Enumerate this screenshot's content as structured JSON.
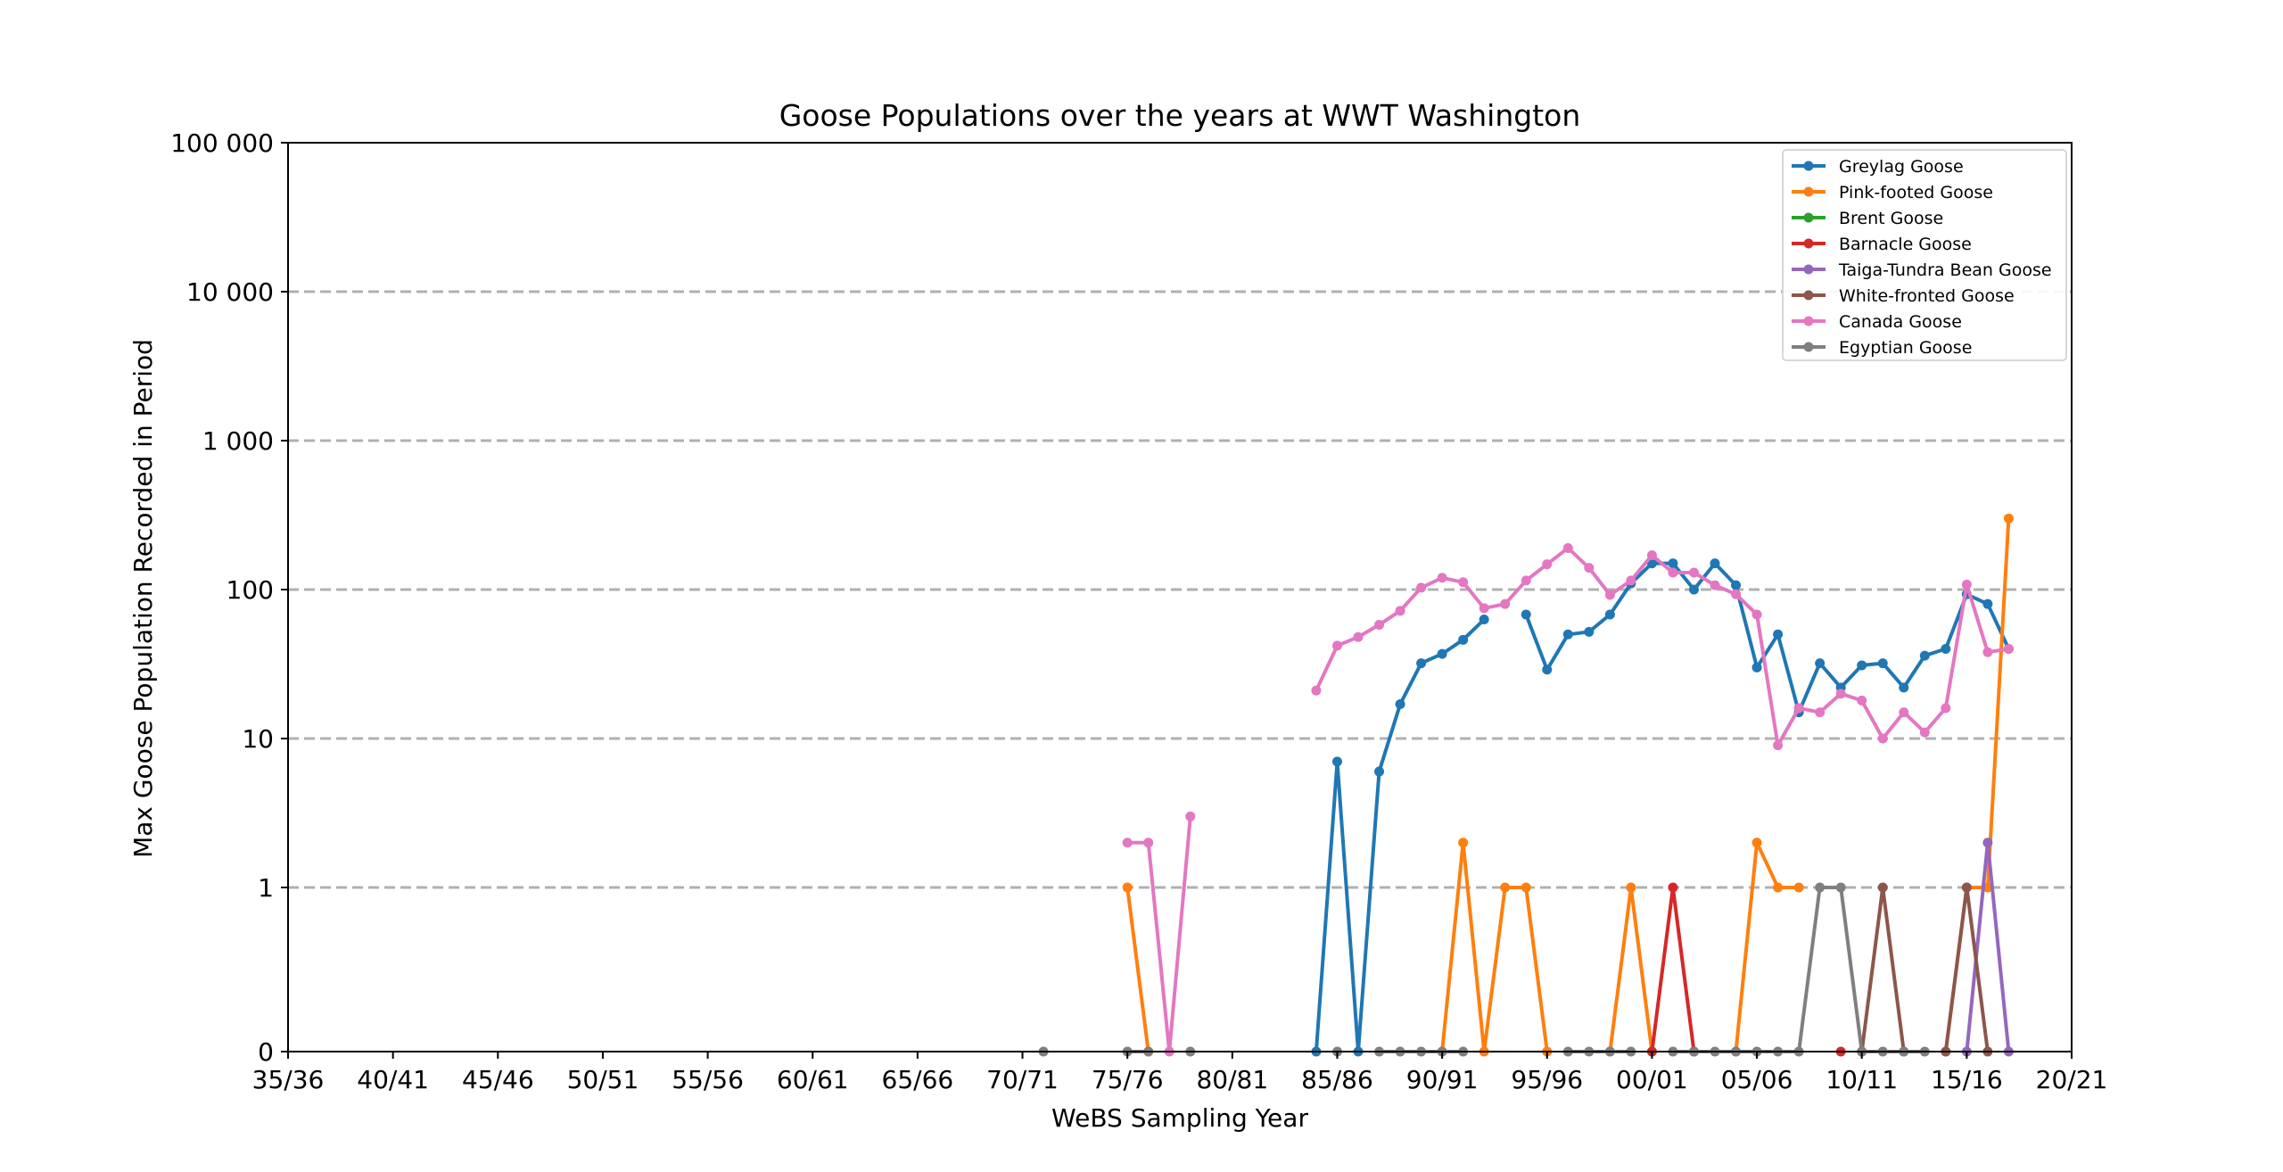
{
  "chart_data": {
    "type": "line",
    "title": "Goose Populations over the years at WWT Washington",
    "xlabel": "WeBS Sampling Year",
    "ylabel": "Max Goose Population Recorded in Period",
    "x_ticks": [
      "35/36",
      "40/41",
      "45/46",
      "50/51",
      "55/56",
      "60/61",
      "65/66",
      "70/71",
      "75/76",
      "80/81",
      "85/86",
      "90/91",
      "95/96",
      "00/01",
      "05/06",
      "10/11",
      "15/16",
      "20/21"
    ],
    "y_ticks": [
      "0",
      "1",
      "10",
      "100",
      "1 000",
      "10 000",
      "100 000"
    ],
    "y_scale": "symlog",
    "xlim": [
      "35/36",
      "20/21"
    ],
    "ylim": [
      0,
      100000
    ],
    "grid": "y-dashed",
    "legend_position": "top-right",
    "series": [
      {
        "name": "Greylag Goose",
        "color": "#1f77b4",
        "points": [
          [
            "84/85",
            0
          ],
          [
            "85/86",
            7
          ],
          [
            "86/87",
            0
          ],
          [
            "87/88",
            6
          ],
          [
            "88/89",
            17
          ],
          [
            "89/90",
            32
          ],
          [
            "90/91",
            37
          ],
          [
            "91/92",
            46
          ],
          [
            "92/93",
            63
          ],
          [
            "94/95",
            68
          ],
          [
            "95/96",
            29
          ],
          [
            "96/97",
            50
          ],
          [
            "97/98",
            52
          ],
          [
            "98/99",
            68
          ],
          [
            "99/00",
            110
          ],
          [
            "00/01",
            150
          ],
          [
            "01/02",
            150
          ],
          [
            "02/03",
            100
          ],
          [
            "03/04",
            150
          ],
          [
            "04/05",
            107
          ],
          [
            "05/06",
            30
          ],
          [
            "06/07",
            50
          ],
          [
            "07/08",
            15
          ],
          [
            "08/09",
            32
          ],
          [
            "09/10",
            22
          ],
          [
            "10/11",
            31
          ],
          [
            "11/12",
            32
          ],
          [
            "12/13",
            22
          ],
          [
            "13/14",
            36
          ],
          [
            "14/15",
            40
          ],
          [
            "15/16",
            93
          ],
          [
            "16/17",
            80
          ],
          [
            "17/18",
            40
          ]
        ]
      },
      {
        "name": "Pink-footed Goose",
        "color": "#ff7f0e",
        "points": [
          [
            "75/76",
            1
          ],
          [
            "76/77",
            0
          ],
          [
            "90/91",
            0
          ],
          [
            "91/92",
            2
          ],
          [
            "92/93",
            0
          ],
          [
            "93/94",
            1
          ],
          [
            "94/95",
            1
          ],
          [
            "95/96",
            0
          ],
          [
            "98/99",
            0
          ],
          [
            "99/00",
            1
          ],
          [
            "00/01",
            0
          ],
          [
            "04/05",
            0
          ],
          [
            "05/06",
            2
          ],
          [
            "06/07",
            1
          ],
          [
            "07/08",
            1
          ],
          [
            "14/15",
            0
          ],
          [
            "15/16",
            1
          ],
          [
            "16/17",
            1
          ],
          [
            "17/18",
            300
          ]
        ]
      },
      {
        "name": "Brent Goose",
        "color": "#2ca02c",
        "points": []
      },
      {
        "name": "Barnacle Goose",
        "color": "#d62728",
        "points": [
          [
            "00/01",
            0
          ],
          [
            "01/02",
            1
          ],
          [
            "02/03",
            0
          ],
          [
            "09/10",
            0
          ]
        ]
      },
      {
        "name": "Taiga-Tundra Bean Goose",
        "color": "#9467bd",
        "points": [
          [
            "15/16",
            0
          ],
          [
            "16/17",
            2
          ],
          [
            "17/18",
            0
          ]
        ]
      },
      {
        "name": "White-fronted Goose",
        "color": "#8c564b",
        "points": [
          [
            "10/11",
            0
          ],
          [
            "11/12",
            1
          ],
          [
            "12/13",
            0
          ],
          [
            "14/15",
            0
          ],
          [
            "15/16",
            1
          ],
          [
            "16/17",
            0
          ]
        ]
      },
      {
        "name": "Canada Goose",
        "color": "#e377c2",
        "points": [
          [
            "75/76",
            2
          ],
          [
            "76/77",
            2
          ],
          [
            "77/78",
            0
          ],
          [
            "78/79",
            3
          ],
          [
            "84/85",
            21
          ],
          [
            "85/86",
            42
          ],
          [
            "86/87",
            48
          ],
          [
            "87/88",
            58
          ],
          [
            "88/89",
            72
          ],
          [
            "89/90",
            103
          ],
          [
            "90/91",
            120
          ],
          [
            "91/92",
            112
          ],
          [
            "92/93",
            75
          ],
          [
            "93/94",
            80
          ],
          [
            "94/95",
            115
          ],
          [
            "95/96",
            148
          ],
          [
            "96/97",
            190
          ],
          [
            "97/98",
            140
          ],
          [
            "98/99",
            92
          ],
          [
            "99/00",
            115
          ],
          [
            "00/01",
            170
          ],
          [
            "01/02",
            130
          ],
          [
            "02/03",
            130
          ],
          [
            "03/04",
            107
          ],
          [
            "04/05",
            93
          ],
          [
            "05/06",
            68
          ],
          [
            "06/07",
            9
          ],
          [
            "07/08",
            16
          ],
          [
            "08/09",
            15
          ],
          [
            "09/10",
            20
          ],
          [
            "10/11",
            18
          ],
          [
            "11/12",
            10
          ],
          [
            "12/13",
            15
          ],
          [
            "13/14",
            11
          ],
          [
            "14/15",
            16
          ],
          [
            "15/16",
            108
          ],
          [
            "16/17",
            38
          ],
          [
            "17/18",
            40
          ]
        ]
      },
      {
        "name": "Egyptian Goose",
        "color": "#7f7f7f",
        "points": [
          [
            "71/72",
            0
          ],
          [
            "75/76",
            0
          ],
          [
            "76/77",
            0
          ],
          [
            "78/79",
            0
          ],
          [
            "85/86",
            0
          ],
          [
            "87/88",
            0
          ],
          [
            "88/89",
            0
          ],
          [
            "89/90",
            0
          ],
          [
            "90/91",
            0
          ],
          [
            "91/92",
            0
          ],
          [
            "96/97",
            0
          ],
          [
            "97/98",
            0
          ],
          [
            "98/99",
            0
          ],
          [
            "99/00",
            0
          ],
          [
            "01/02",
            0
          ],
          [
            "02/03",
            0
          ],
          [
            "03/04",
            0
          ],
          [
            "04/05",
            0
          ],
          [
            "05/06",
            0
          ],
          [
            "06/07",
            0
          ],
          [
            "07/08",
            0
          ],
          [
            "08/09",
            1
          ],
          [
            "09/10",
            1
          ],
          [
            "10/11",
            0
          ],
          [
            "11/12",
            0
          ],
          [
            "12/13",
            0
          ],
          [
            "13/14",
            0
          ]
        ]
      }
    ]
  }
}
